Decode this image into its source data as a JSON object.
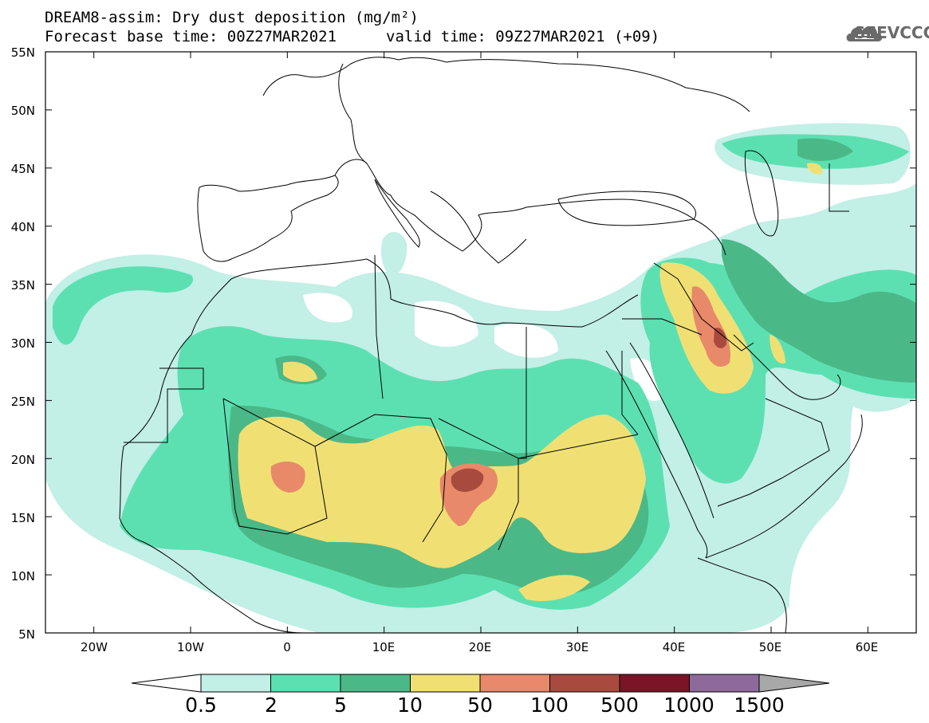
{
  "header": {
    "line1": "DREAM8-assim: Dry dust deposition (mg/m²)",
    "line2": "Forecast base time: 00Z27MAR2021",
    "line3": "valid time: 09Z27MAR2021 (+09)"
  },
  "logo": {
    "text": "SEEVCCC",
    "icon": "cloud-icon"
  },
  "map": {
    "lat_ticks": [
      "55N",
      "50N",
      "45N",
      "40N",
      "35N",
      "30N",
      "25N",
      "20N",
      "15N",
      "10N",
      "5N"
    ],
    "lon_ticks": [
      "20W",
      "10W",
      "0",
      "10E",
      "20E",
      "30E",
      "40E",
      "50E",
      "60E"
    ],
    "lat_range": [
      5,
      55
    ],
    "lon_range": [
      -25,
      65
    ]
  },
  "colorbar": {
    "labels": [
      "0.5",
      "2",
      "5",
      "10",
      "50",
      "100",
      "500",
      "1000",
      "1500"
    ],
    "colors": [
      "#c2efe6",
      "#5ce0b2",
      "#4bb888",
      "#f0e074",
      "#e8896a",
      "#a84a3e",
      "#7a1426",
      "#8e6a9c"
    ],
    "under_color": "#ffffff",
    "over_color": "#a8a8a8"
  }
}
